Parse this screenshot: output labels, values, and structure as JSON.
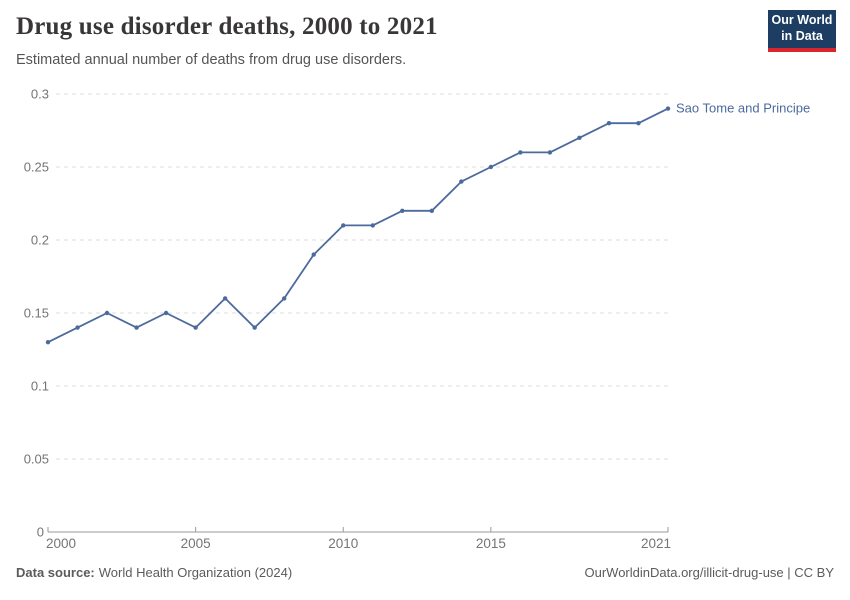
{
  "header": {
    "title": "Drug use disorder deaths, 2000 to 2021",
    "subtitle": "Estimated annual number of deaths from drug use disorders.",
    "logo": {
      "line1": "Our World",
      "line2": "in Data"
    }
  },
  "chart_data": {
    "type": "line",
    "title": "Drug use disorder deaths, 2000 to 2021",
    "xlabel": "",
    "ylabel": "",
    "xlim": [
      2000,
      2021
    ],
    "ylim": [
      0,
      0.3
    ],
    "grid": "horizontal dashed",
    "legend_position": "end-of-line label",
    "x_ticks": [
      2000,
      2005,
      2010,
      2015,
      2021
    ],
    "x_tick_labels": [
      "2000",
      "2005",
      "2010",
      "2015",
      "2021"
    ],
    "y_ticks": [
      0,
      0.05,
      0.1,
      0.15,
      0.2,
      0.25,
      0.3
    ],
    "y_tick_labels": [
      "0",
      "0.05",
      "0.1",
      "0.15",
      "0.2",
      "0.25",
      "0.3"
    ],
    "series": [
      {
        "name": "Sao Tome and Principe",
        "color": "#4c6a9c",
        "x": [
          2000,
          2001,
          2002,
          2003,
          2004,
          2005,
          2006,
          2007,
          2008,
          2009,
          2010,
          2011,
          2012,
          2013,
          2014,
          2015,
          2016,
          2017,
          2018,
          2019,
          2020,
          2021
        ],
        "values": [
          0.13,
          0.14,
          0.15,
          0.14,
          0.15,
          0.14,
          0.16,
          0.14,
          0.16,
          0.19,
          0.21,
          0.21,
          0.22,
          0.22,
          0.24,
          0.25,
          0.26,
          0.26,
          0.27,
          0.28,
          0.28,
          0.29
        ]
      }
    ]
  },
  "footer": {
    "data_source_label": "Data source:",
    "data_source_value": "World Health Organization (2024)",
    "right_text": "OurWorldinData.org/illicit-drug-use | CC BY"
  },
  "colors": {
    "line": "#4c6a9c",
    "grid": "#dddddd",
    "axis": "#999999",
    "tick_label": "#757575",
    "title": "#383636",
    "subtitle": "#555555",
    "footer": "#5b5b5b",
    "logo_bg": "#1d3d63",
    "logo_accent": "#d9262e"
  }
}
